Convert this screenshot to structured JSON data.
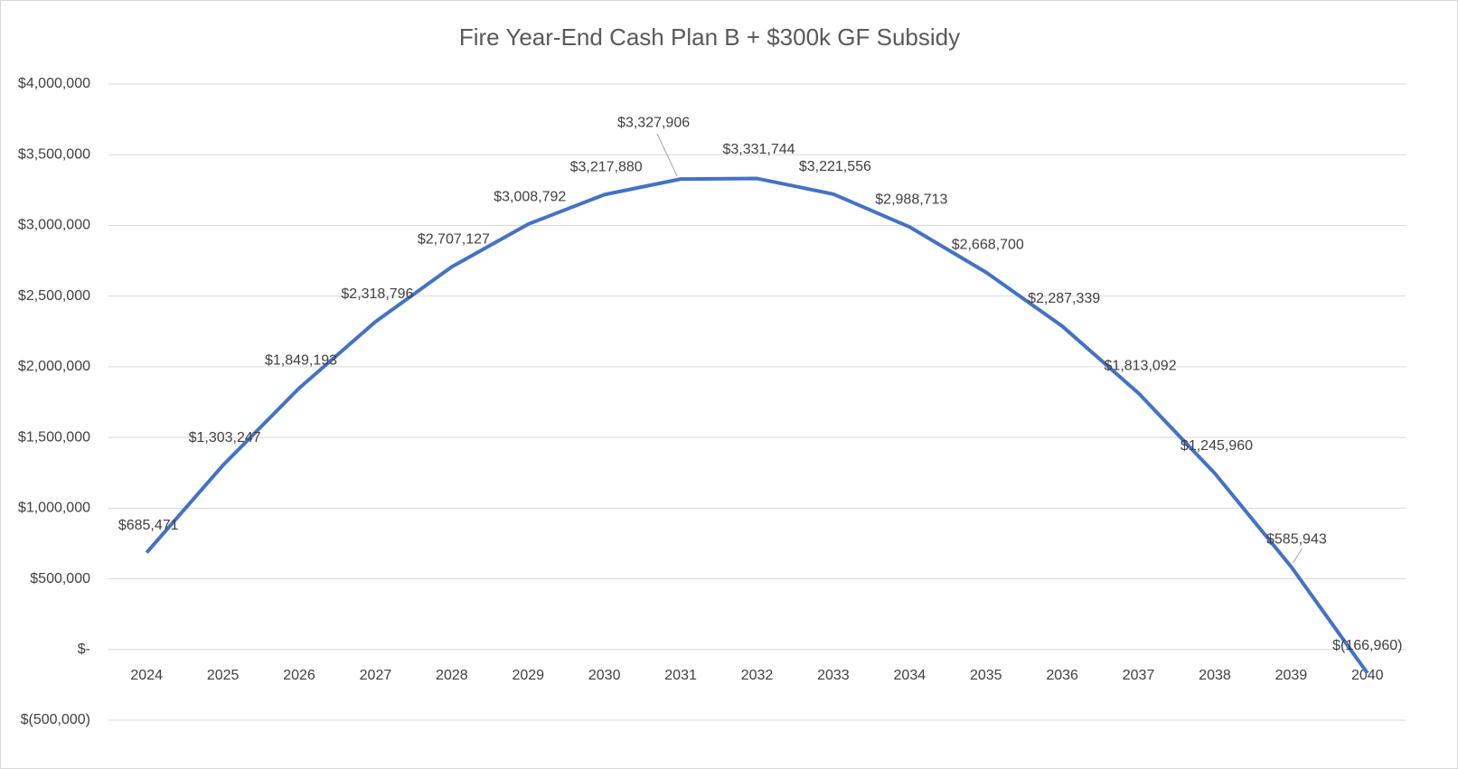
{
  "chart_data": {
    "type": "line",
    "title": "Fire Year-End Cash Plan B + $300k GF Subsidy",
    "categories": [
      "2024",
      "2025",
      "2026",
      "2027",
      "2028",
      "2029",
      "2030",
      "2031",
      "2032",
      "2033",
      "2034",
      "2035",
      "2036",
      "2037",
      "2038",
      "2039",
      "2040"
    ],
    "values": [
      685471,
      1303247,
      1849193,
      2318796,
      2707127,
      3008792,
      3217880,
      3327906,
      3331744,
      3221556,
      2988713,
      2668700,
      2287339,
      1813092,
      1245960,
      585943,
      -166960
    ],
    "value_labels": [
      "$685,471",
      "$1,303,247",
      "$1,849,193",
      "$2,318,796",
      "$2,707,127",
      "$3,008,792",
      "$3,217,880",
      "$3,327,906",
      "$3,331,744",
      "$3,221,556",
      "$2,988,713",
      "$2,668,700",
      "$2,287,339",
      "$1,813,092",
      "$1,245,960",
      "$585,943",
      "$(166,960)"
    ],
    "color": "#4472c4",
    "ylim": [
      -500000,
      4000000
    ],
    "yticks": [
      {
        "value": -500000,
        "label": "$(500,000)"
      },
      {
        "value": 0,
        "label": "$-"
      },
      {
        "value": 500000,
        "label": "$500,000"
      },
      {
        "value": 1000000,
        "label": "$1,000,000"
      },
      {
        "value": 1500000,
        "label": "$1,500,000"
      },
      {
        "value": 2000000,
        "label": "$2,000,000"
      },
      {
        "value": 2500000,
        "label": "$2,500,000"
      },
      {
        "value": 3000000,
        "label": "$3,000,000"
      },
      {
        "value": 3500000,
        "label": "$3,500,000"
      },
      {
        "value": 4000000,
        "label": "$4,000,000"
      }
    ],
    "grid": true
  }
}
